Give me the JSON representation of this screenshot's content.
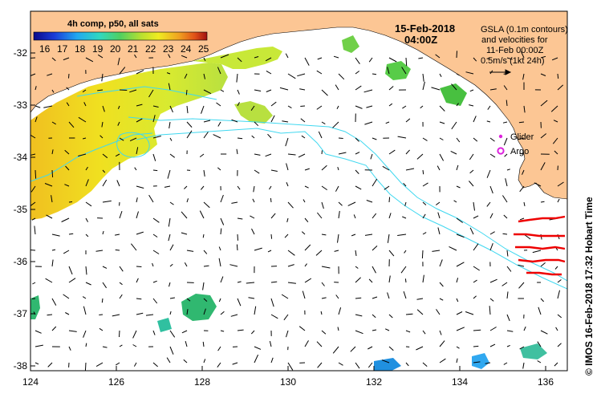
{
  "map": {
    "lon_ticks": [
      "124",
      "126",
      "128",
      "130",
      "132",
      "134",
      "136"
    ],
    "lat_ticks": [
      "-32",
      "-33",
      "-34",
      "-35",
      "-36",
      "-37",
      "-38"
    ],
    "colorbar": {
      "title": "4h comp, p50, all sats",
      "labels": [
        "16",
        "17",
        "18",
        "19",
        "20",
        "21",
        "22",
        "23",
        "24",
        "25"
      ]
    },
    "timestamp": {
      "date": "15-Feb-2018",
      "time": "04:00Z"
    },
    "gsla_note": [
      "GSLA (0.1m contours)",
      "and velocities for",
      "11-Feb 00:00Z",
      "0.5m/s (1kt 24h)"
    ],
    "legend": {
      "glider": "Glider",
      "argo": "Argo"
    },
    "credit": "© IMOS 16-Feb-2018 17:32 Hobart Time",
    "colors": {
      "land": "#fcc694",
      "contour": "#40d8f0",
      "glider": "#dd22dd",
      "argo": "#dd22dd",
      "vectors": "#000000",
      "red_tracks": "#ee0000"
    }
  }
}
